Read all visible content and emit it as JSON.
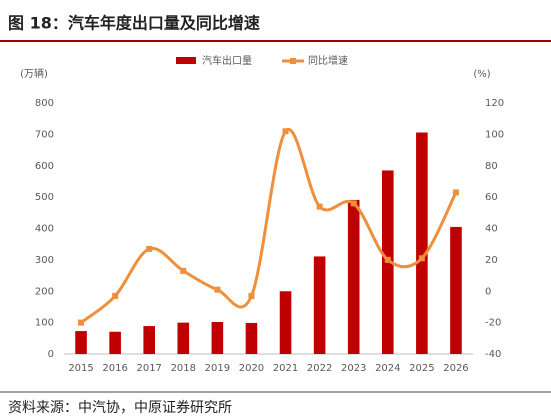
{
  "header": {
    "title": "图 18：汽车年度出口量及同比增速"
  },
  "chart_data": {
    "type": "bar-line",
    "y_unit": "(万辆)",
    "y2_unit": "(%)",
    "categories": [
      "2015",
      "2016",
      "2017",
      "2018",
      "2019",
      "2020",
      "2021",
      "2022",
      "2023",
      "2024",
      "2025",
      "2026"
    ],
    "series": [
      {
        "name": "汽车出口量",
        "type": "bar",
        "color": "#c00000",
        "values": [
          73,
          71,
          89,
          100,
          102,
          99,
          200,
          311,
          491,
          585,
          706,
          405
        ]
      },
      {
        "name": "同比增速",
        "type": "line",
        "axis": "y2",
        "color": "#ed8f3c",
        "values": [
          -20,
          -3,
          27,
          13,
          1,
          -3,
          102,
          54,
          56,
          20,
          21,
          63
        ]
      }
    ],
    "ylim": [
      0,
      800
    ],
    "yticks": [
      0,
      100,
      200,
      300,
      400,
      500,
      600,
      700,
      800
    ],
    "y2lim": [
      -40,
      120
    ],
    "y2ticks": [
      -40,
      -20,
      0,
      20,
      40,
      60,
      80,
      100,
      120
    ],
    "legend": "top"
  },
  "footer": {
    "source": "资料来源：中汽协，中原证券研究所"
  }
}
